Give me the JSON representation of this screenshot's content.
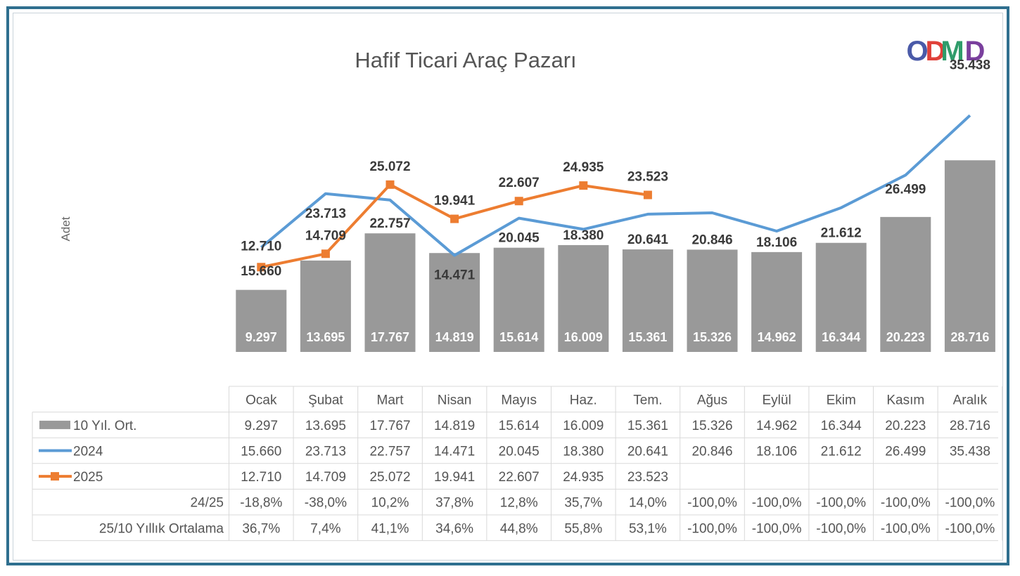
{
  "title": "Hafif Ticari Araç Pazarı",
  "ylabel": "Adet",
  "logo_text": "ODMD",
  "colors": {
    "bar": "#999999",
    "line_2024": "#5b9bd5",
    "line_2025": "#ed7d31",
    "frame": "#2f6f8f",
    "logo": [
      "#4a5aa8",
      "#e0413a",
      "#2f9c6a",
      "#7a3f9d",
      "#f2b021"
    ]
  },
  "chart_data": {
    "type": "bar",
    "title": "Hafif Ticari Araç Pazarı",
    "ylabel": "Adet",
    "categories": [
      "Ocak",
      "Şubat",
      "Mart",
      "Nisan",
      "Mayıs",
      "Haz.",
      "Tem.",
      "Ağus",
      "Eylül",
      "Ekim",
      "Kasım",
      "Aralık"
    ],
    "ylim": [
      0,
      38000
    ],
    "grid": false,
    "legend": "data table",
    "series": [
      {
        "name": "10 Yıl. Ort.",
        "type": "bar",
        "values": [
          9297,
          13695,
          17767,
          14819,
          15614,
          16009,
          15361,
          15326,
          14962,
          16344,
          20223,
          28716
        ],
        "labels": [
          "9.297",
          "13.695",
          "17.767",
          "14.819",
          "15.614",
          "16.009",
          "15.361",
          "15.326",
          "14.962",
          "16.344",
          "20.223",
          "28.716"
        ]
      },
      {
        "name": "2024",
        "type": "line",
        "values": [
          15660,
          23713,
          22757,
          14471,
          20045,
          18380,
          20641,
          20846,
          18106,
          21612,
          26499,
          35438
        ],
        "labels": [
          "15.660",
          "23.713",
          "22.757",
          "14.471",
          "20.045",
          "18.380",
          "20.641",
          "20.846",
          "18.106",
          "21.612",
          "26.499",
          "35.438"
        ]
      },
      {
        "name": "2025",
        "type": "line",
        "values": [
          12710,
          14709,
          25072,
          19941,
          22607,
          24935,
          23523,
          null,
          null,
          null,
          null,
          null
        ],
        "labels": [
          "12.710",
          "14.709",
          "25.072",
          "19.941",
          "22.607",
          "24.935",
          "23.523",
          "",
          "",
          "",
          "",
          ""
        ]
      }
    ],
    "table": {
      "rows": [
        {
          "label": "24/25",
          "values": [
            "-18,8%",
            "-38,0%",
            "10,2%",
            "37,8%",
            "12,8%",
            "35,7%",
            "14,0%",
            "-100,0%",
            "-100,0%",
            "-100,0%",
            "-100,0%",
            "-100,0%"
          ]
        },
        {
          "label": "25/10 Yıllık Ortalama",
          "values": [
            "36,7%",
            "7,4%",
            "41,1%",
            "34,6%",
            "44,8%",
            "55,8%",
            "53,1%",
            "-100,0%",
            "-100,0%",
            "-100,0%",
            "-100,0%",
            "-100,0%"
          ]
        }
      ]
    }
  }
}
